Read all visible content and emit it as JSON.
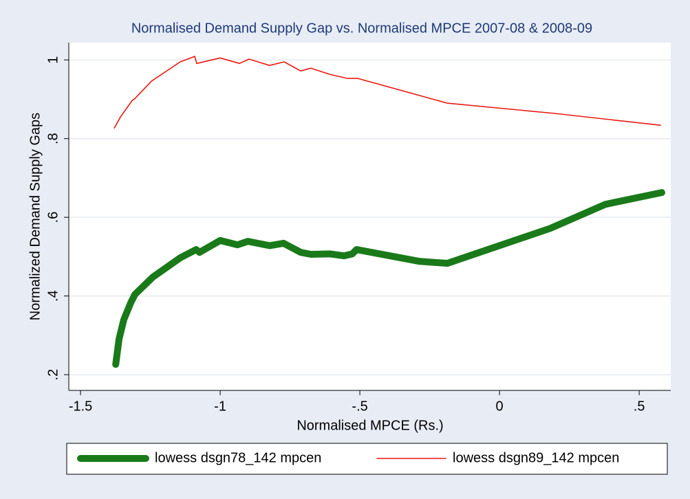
{
  "chart_data": {
    "type": "line",
    "title": "Normalised Demand Supply Gap vs. Normalised MPCE 2007-08 & 2008-09",
    "x_label": "Normalised MPCE (Rs.)",
    "y_label": "Normalized Demand Supply Gaps",
    "xlim": [
      -1.542,
      0.613
    ],
    "ylim": [
      0.16,
      1.044
    ],
    "xticks": [
      -1.5,
      -1,
      {
        "value": -0.5,
        "label": "-.5"
      },
      0,
      {
        "value": 0.5,
        "label": ".5"
      }
    ],
    "yticks": [
      {
        "value": 0.2,
        "label": ".2"
      },
      {
        "value": 0.4,
        "label": ".4"
      },
      {
        "value": 0.6,
        "label": ".6"
      },
      {
        "value": 0.8,
        "label": ".8"
      },
      1
    ],
    "grid": true,
    "legend": "bottom",
    "series": [
      {
        "name": "lowess dsgn78_142  mpcen",
        "color": "#1a7a1a",
        "width": 10,
        "x": [
          -1.374,
          -1.362,
          -1.345,
          -1.32,
          -1.305,
          -1.241,
          -1.143,
          -1.086,
          -1.074,
          -1.0,
          -0.938,
          -0.901,
          -0.823,
          -0.773,
          -0.712,
          -0.675,
          -0.606,
          -0.557,
          -0.527,
          -0.512,
          -0.286,
          -0.187,
          0.145,
          0.182,
          0.379,
          0.581
        ],
        "values": [
          0.226,
          0.291,
          0.34,
          0.383,
          0.404,
          0.448,
          0.497,
          0.518,
          0.511,
          0.541,
          0.53,
          0.539,
          0.528,
          0.534,
          0.511,
          0.506,
          0.507,
          0.502,
          0.507,
          0.518,
          0.488,
          0.483,
          0.563,
          0.572,
          0.633,
          0.663
        ]
      },
      {
        "name": "lowess dsgn89_142  mpcen",
        "color": "#e8190f",
        "width": 1.6,
        "x": [
          -1.379,
          -1.357,
          -1.315,
          -1.305,
          -1.246,
          -1.143,
          -1.091,
          -1.084,
          -1.0,
          -0.931,
          -0.897,
          -0.823,
          -0.771,
          -0.712,
          -0.675,
          -0.606,
          -0.544,
          -0.507,
          -0.187,
          0.197,
          0.576
        ],
        "values": [
          0.827,
          0.855,
          0.897,
          0.902,
          0.946,
          0.995,
          1.009,
          0.991,
          1.005,
          0.991,
          1.002,
          0.986,
          0.995,
          0.972,
          0.979,
          0.963,
          0.953,
          0.953,
          0.89,
          0.864,
          0.834
        ]
      }
    ]
  }
}
